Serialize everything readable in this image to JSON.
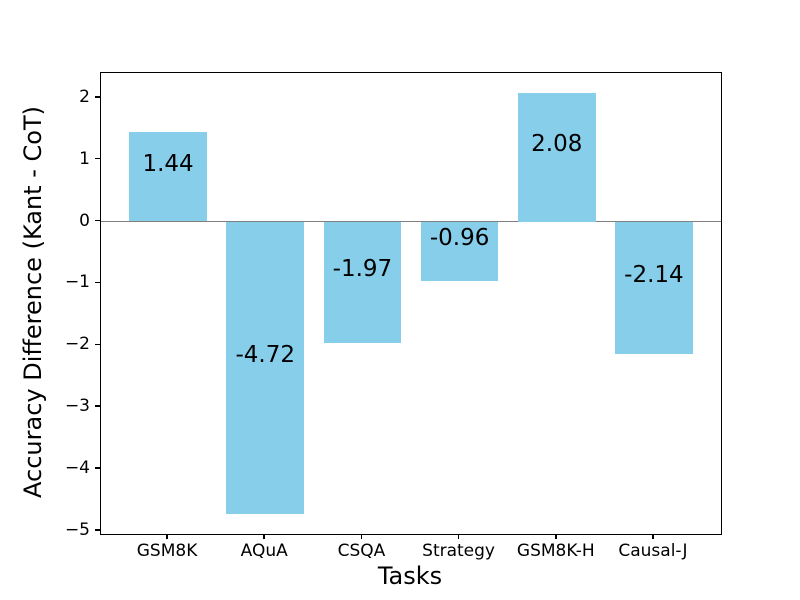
{
  "chart_data": {
    "type": "bar",
    "title": "",
    "xlabel": "Tasks",
    "ylabel": "Accuracy Difference (Kant - CoT)",
    "categories": [
      "GSM8K",
      "AQuA",
      "CSQA",
      "Strategy",
      "GSM8K-H",
      "Causal-J"
    ],
    "values": [
      1.44,
      -4.72,
      -1.97,
      -0.96,
      2.08,
      -2.14
    ],
    "bar_labels": [
      "1.44",
      "-4.72",
      "-1.97",
      "-0.96",
      "2.08",
      "-2.14"
    ],
    "y_ticks": [
      {
        "value": 2,
        "label": "2"
      },
      {
        "value": 1,
        "label": "1"
      },
      {
        "value": 0,
        "label": "0"
      },
      {
        "value": -1,
        "label": "−1"
      },
      {
        "value": -2,
        "label": "−2"
      },
      {
        "value": -3,
        "label": "−3"
      },
      {
        "value": -4,
        "label": "−4"
      },
      {
        "value": -5,
        "label": "−5"
      }
    ],
    "ylim": [
      -5.05,
      2.4
    ],
    "xlim": [
      -0.69,
      5.69
    ],
    "bar_width_units": 0.8,
    "bar_color": "#87CEEB",
    "zero_line_color": "#808080",
    "grid": false,
    "legend": null
  }
}
